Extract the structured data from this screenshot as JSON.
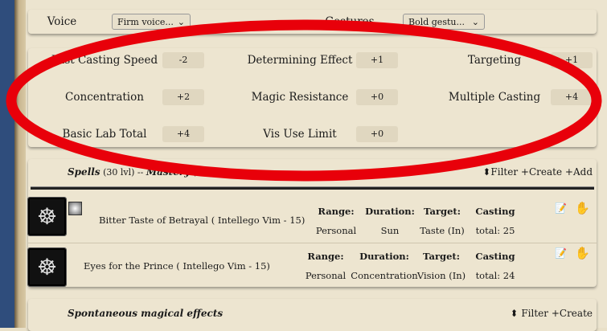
{
  "voice": {
    "label": "Voice",
    "value": "Firm voice..."
  },
  "gestures": {
    "label": "Gestures",
    "value": "Bold gestu..."
  },
  "stats": [
    {
      "label": "Fast Casting Speed",
      "value": "-2"
    },
    {
      "label": "Determining Effect",
      "value": "+1"
    },
    {
      "label": "Targeting",
      "value": "+1"
    },
    {
      "label": "Concentration",
      "value": "+2"
    },
    {
      "label": "Magic Resistance",
      "value": "+0"
    },
    {
      "label": "Multiple Casting",
      "value": "+4"
    },
    {
      "label": "Basic Lab Total",
      "value": "+4"
    },
    {
      "label": "Vis Use Limit",
      "value": "+0"
    }
  ],
  "spells": {
    "title": "Spells",
    "level": "(30 lvl)",
    "sep": "--",
    "mastery": "Mastery",
    "xp": "(5 xp)",
    "filter": "Filter",
    "create": "Create",
    "add": "Add",
    "headers": {
      "range": "Range:",
      "duration": "Duration:",
      "target": "Target:",
      "casting": "Casting"
    },
    "items": [
      {
        "name": "Bitter Taste of Betrayal ( Intellego Vim - 15)",
        "range": "Personal",
        "duration": "Sun",
        "target": "Taste (In)",
        "total": "total: 25"
      },
      {
        "name": "Eyes for the Prince ( Intellego Vim - 15)",
        "range": "Personal",
        "duration": "Concentration",
        "target": "Vision (In)",
        "total": "total: 24"
      }
    ]
  },
  "spontaneous": {
    "title": "Spontaneous magical effects",
    "filter": "Filter",
    "create": "Create"
  },
  "colors": {
    "annotation": "#e8000a",
    "sidebar": "#2f4d7c"
  }
}
